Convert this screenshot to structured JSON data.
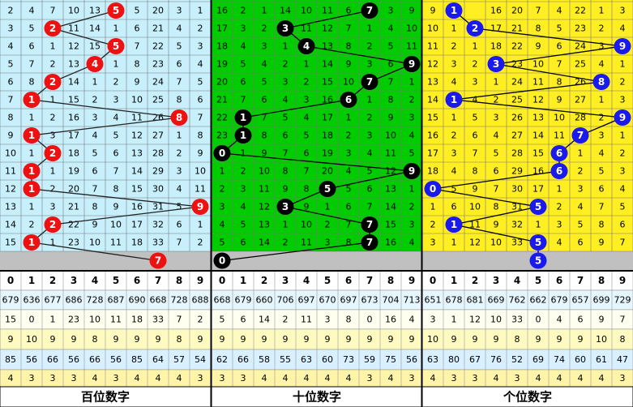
{
  "panels": [
    {
      "title": "百位数字",
      "background": "#c8f0fc",
      "ball_color": "#ee1111",
      "line_color": "#222222",
      "rows": [
        [
          2,
          4,
          7,
          10,
          13,
          {
            "ball": 5
          },
          5,
          20,
          3,
          1
        ],
        [
          3,
          5,
          {
            "ball": 2
          },
          11,
          14,
          1,
          6,
          21,
          4,
          2
        ],
        [
          4,
          6,
          1,
          12,
          15,
          {
            "ball": 5
          },
          7,
          22,
          5,
          3
        ],
        [
          5,
          7,
          2,
          13,
          {
            "ball": 4
          },
          1,
          8,
          23,
          6,
          4
        ],
        [
          6,
          8,
          {
            "ball": 2
          },
          14,
          1,
          2,
          9,
          24,
          7,
          5
        ],
        [
          7,
          {
            "ball": 1
          },
          1,
          15,
          2,
          3,
          10,
          25,
          8,
          6
        ],
        [
          8,
          1,
          2,
          16,
          3,
          4,
          11,
          26,
          {
            "ball": 8
          },
          7
        ],
        [
          9,
          {
            "ball": 1
          },
          3,
          17,
          4,
          5,
          12,
          27,
          1,
          8
        ],
        [
          10,
          1,
          {
            "ball": 2
          },
          18,
          5,
          6,
          13,
          28,
          2,
          9
        ],
        [
          11,
          {
            "ball": 1
          },
          1,
          19,
          6,
          7,
          14,
          29,
          3,
          10
        ],
        [
          12,
          {
            "ball": 1
          },
          2,
          20,
          7,
          8,
          15,
          30,
          4,
          11
        ],
        [
          13,
          1,
          3,
          21,
          8,
          9,
          16,
          31,
          5,
          {
            "ball": 9
          }
        ],
        [
          14,
          2,
          {
            "ball": 2
          },
          22,
          9,
          10,
          17,
          32,
          6,
          1
        ],
        [
          15,
          {
            "ball": 1
          },
          1,
          23,
          10,
          11,
          18,
          33,
          7,
          2
        ]
      ],
      "next": 7,
      "header": [
        0,
        1,
        2,
        3,
        4,
        5,
        6,
        7,
        8,
        9
      ],
      "stats": [
        [
          679,
          636,
          677,
          686,
          728,
          687,
          690,
          668,
          728,
          688
        ],
        [
          15,
          0,
          1,
          23,
          10,
          11,
          18,
          33,
          7,
          2
        ],
        [
          9,
          10,
          9,
          9,
          8,
          9,
          9,
          9,
          8,
          9
        ],
        [
          85,
          56,
          66,
          56,
          66,
          56,
          85,
          64,
          57,
          54
        ],
        [
          4,
          3,
          3,
          3,
          4,
          3,
          4,
          4,
          4,
          3
        ]
      ]
    },
    {
      "title": "十位数字",
      "background": "#00cc00",
      "ball_color": "#000000",
      "line_color": "#000000",
      "rows": [
        [
          16,
          2,
          1,
          14,
          10,
          11,
          6,
          {
            "ball": 7
          },
          3,
          9
        ],
        [
          17,
          3,
          2,
          {
            "ball": 3
          },
          11,
          12,
          7,
          1,
          4,
          10
        ],
        [
          18,
          4,
          3,
          1,
          {
            "ball": 4
          },
          13,
          8,
          2,
          5,
          11
        ],
        [
          19,
          5,
          4,
          2,
          1,
          14,
          9,
          3,
          6,
          {
            "ball": 9
          }
        ],
        [
          20,
          6,
          5,
          3,
          2,
          15,
          10,
          {
            "ball": 7
          },
          7,
          1
        ],
        [
          21,
          7,
          6,
          4,
          3,
          16,
          {
            "ball": 6
          },
          1,
          8,
          2
        ],
        [
          22,
          {
            "ball": 1
          },
          7,
          5,
          4,
          17,
          1,
          2,
          9,
          3
        ],
        [
          23,
          {
            "ball": 1
          },
          8,
          6,
          5,
          18,
          2,
          3,
          10,
          4
        ],
        [
          {
            "ball": 0
          },
          1,
          9,
          7,
          6,
          19,
          3,
          4,
          11,
          5
        ],
        [
          1,
          2,
          10,
          8,
          7,
          20,
          4,
          5,
          12,
          {
            "ball": 9
          }
        ],
        [
          2,
          3,
          11,
          9,
          8,
          {
            "ball": 5
          },
          5,
          6,
          13,
          1
        ],
        [
          3,
          4,
          12,
          {
            "ball": 3
          },
          9,
          1,
          6,
          7,
          14,
          2
        ],
        [
          4,
          5,
          13,
          1,
          10,
          2,
          7,
          {
            "ball": 7
          },
          15,
          3
        ],
        [
          5,
          6,
          14,
          2,
          11,
          3,
          8,
          {
            "ball": 7
          },
          16,
          4
        ]
      ],
      "next": 0,
      "header": [
        0,
        1,
        2,
        3,
        4,
        5,
        6,
        7,
        8,
        9
      ],
      "stats": [
        [
          668,
          679,
          660,
          706,
          697,
          670,
          697,
          673,
          704,
          713
        ],
        [
          5,
          6,
          14,
          2,
          11,
          3,
          8,
          0,
          16,
          4
        ],
        [
          9,
          9,
          9,
          9,
          9,
          9,
          9,
          9,
          9,
          9
        ],
        [
          62,
          66,
          58,
          55,
          63,
          60,
          73,
          59,
          75,
          56
        ],
        [
          3,
          3,
          4,
          4,
          4,
          4,
          4,
          3,
          4,
          3
        ]
      ]
    },
    {
      "title": "个位数字",
      "background": "#ffee22",
      "ball_color": "#1a1aee",
      "line_color": "#000000",
      "rows": [
        [
          9,
          {
            "ball": 1
          },
          null,
          16,
          20,
          7,
          4,
          22,
          1,
          3
        ],
        [
          10,
          1,
          {
            "ball": 2
          },
          17,
          21,
          8,
          5,
          23,
          2,
          4
        ],
        [
          11,
          2,
          1,
          18,
          22,
          9,
          6,
          24,
          3,
          {
            "ball": 9
          }
        ],
        [
          12,
          3,
          2,
          {
            "ball": 3
          },
          23,
          10,
          7,
          25,
          4,
          1
        ],
        [
          13,
          4,
          3,
          1,
          24,
          11,
          8,
          26,
          {
            "ball": 8
          },
          2
        ],
        [
          14,
          {
            "ball": 1
          },
          4,
          2,
          25,
          12,
          9,
          27,
          1,
          3
        ],
        [
          15,
          1,
          5,
          3,
          26,
          13,
          10,
          28,
          2,
          {
            "ball": 9
          }
        ],
        [
          16,
          2,
          6,
          4,
          27,
          14,
          11,
          {
            "ball": 7
          },
          3,
          1
        ],
        [
          17,
          3,
          7,
          5,
          28,
          15,
          {
            "ball": 6
          },
          1,
          4,
          2
        ],
        [
          18,
          4,
          8,
          6,
          29,
          16,
          {
            "ball": 6
          },
          2,
          5,
          3
        ],
        [
          {
            "ball": 0
          },
          5,
          9,
          7,
          30,
          17,
          1,
          3,
          6,
          4
        ],
        [
          1,
          6,
          10,
          8,
          31,
          {
            "ball": 5
          },
          2,
          4,
          7,
          5
        ],
        [
          2,
          {
            "ball": 1
          },
          11,
          9,
          32,
          1,
          3,
          5,
          8,
          6
        ],
        [
          3,
          1,
          12,
          10,
          33,
          {
            "ball": 5
          },
          4,
          6,
          9,
          7
        ]
      ],
      "next": 5,
      "header": [
        0,
        1,
        2,
        3,
        4,
        5,
        6,
        7,
        8,
        9
      ],
      "stats": [
        [
          651,
          678,
          681,
          669,
          762,
          662,
          679,
          657,
          699,
          729
        ],
        [
          3,
          1,
          12,
          10,
          33,
          0,
          4,
          6,
          9,
          7
        ],
        [
          10,
          9,
          9,
          9,
          8,
          9,
          9,
          9,
          10,
          8
        ],
        [
          63,
          80,
          67,
          76,
          52,
          69,
          74,
          60,
          61,
          47
        ],
        [
          4,
          3,
          3,
          4,
          3,
          4,
          4,
          4,
          4,
          3
        ]
      ]
    }
  ]
}
